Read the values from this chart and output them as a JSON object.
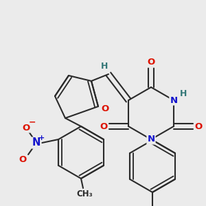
{
  "bg_color": "#ebebeb",
  "bond_color": "#2a2a2a",
  "bond_width": 1.5,
  "atom_colors": {
    "O": "#dd1100",
    "N": "#1111cc",
    "H": "#337777",
    "C": "#2a2a2a",
    "plus": "#1111cc",
    "minus": "#dd1100"
  },
  "font_size_atom": 9.5,
  "font_size_small": 8.0
}
